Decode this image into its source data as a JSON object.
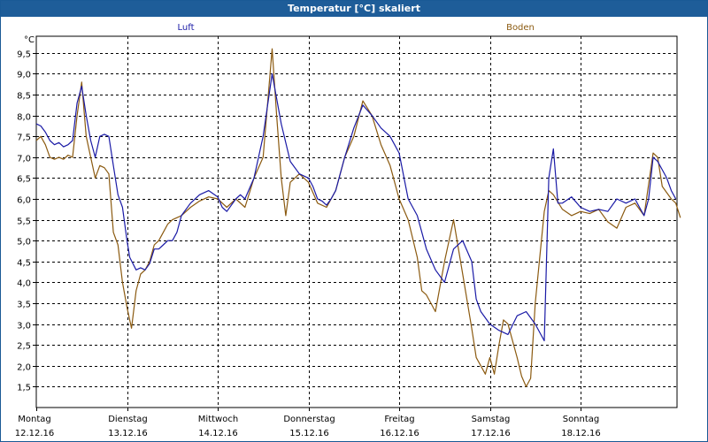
{
  "window": {
    "title": "Temperatur [°C] skaliert"
  },
  "chart_data": {
    "type": "line",
    "title": "Temperatur [°C] skaliert",
    "ylabel": "°C",
    "xlabel": "",
    "ylim": [
      1.0,
      9.9
    ],
    "xlim": [
      0,
      7.1
    ],
    "grid": true,
    "yticks": [
      "1,5",
      "2,0",
      "2,5",
      "3,0",
      "3,5",
      "4,0",
      "4,5",
      "5,0",
      "5,5",
      "6,0",
      "6,5",
      "7,0",
      "7,5",
      "8,0",
      "8,5",
      "9,0",
      "9,5"
    ],
    "ytick_values": [
      1.5,
      2.0,
      2.5,
      3.0,
      3.5,
      4.0,
      4.5,
      5.0,
      5.5,
      6.0,
      6.5,
      7.0,
      7.5,
      8.0,
      8.5,
      9.0,
      9.5
    ],
    "days": [
      {
        "name": "Montag",
        "date": "12.12.16"
      },
      {
        "name": "Dienstag",
        "date": "13.12.16"
      },
      {
        "name": "Mittwoch",
        "date": "14.12.16"
      },
      {
        "name": "Donnerstag",
        "date": "15.12.16"
      },
      {
        "name": "Freitag",
        "date": "16.12.16"
      },
      {
        "name": "Samstag",
        "date": "17.12.16"
      },
      {
        "name": "Sonntag",
        "date": "18.12.16"
      }
    ],
    "legend": [
      {
        "name": "Luft",
        "color": "#1a1aa6"
      },
      {
        "name": "Boden",
        "color": "#8b5a10"
      }
    ],
    "series": [
      {
        "name": "Luft",
        "color": "#1a1aa6",
        "x": [
          0,
          0.05,
          0.1,
          0.15,
          0.2,
          0.25,
          0.3,
          0.35,
          0.4,
          0.45,
          0.5,
          0.55,
          0.6,
          0.65,
          0.7,
          0.75,
          0.8,
          0.85,
          0.9,
          0.95,
          1.0,
          1.03,
          1.1,
          1.15,
          1.2,
          1.25,
          1.3,
          1.35,
          1.4,
          1.45,
          1.5,
          1.55,
          1.6,
          1.7,
          1.8,
          1.9,
          2.0,
          2.05,
          2.1,
          2.2,
          2.25,
          2.3,
          2.4,
          2.5,
          2.6,
          2.7,
          2.8,
          2.9,
          3.0,
          3.05,
          3.1,
          3.15,
          3.2,
          3.25,
          3.3,
          3.4,
          3.5,
          3.6,
          3.7,
          3.8,
          3.9,
          4.0,
          4.1,
          4.2,
          4.3,
          4.4,
          4.5,
          4.6,
          4.7,
          4.8,
          4.85,
          4.9,
          5.0,
          5.1,
          5.2,
          5.3,
          5.4,
          5.5,
          5.55,
          5.6,
          5.65,
          5.7,
          5.75,
          5.8,
          5.9,
          6.0,
          6.1,
          6.2,
          6.3,
          6.4,
          6.5,
          6.6,
          6.65,
          6.7,
          6.75,
          6.8,
          6.85,
          6.9,
          6.95,
          7.0,
          7.05
        ],
        "y": [
          7.8,
          7.75,
          7.6,
          7.4,
          7.3,
          7.35,
          7.25,
          7.3,
          7.4,
          8.3,
          8.7,
          8.0,
          7.4,
          7.0,
          7.5,
          7.55,
          7.5,
          6.8,
          6.1,
          5.8,
          5.0,
          4.6,
          4.3,
          4.35,
          4.3,
          4.45,
          4.8,
          4.8,
          4.9,
          5.0,
          5.0,
          5.2,
          5.6,
          5.9,
          6.1,
          6.2,
          6.05,
          5.8,
          5.7,
          6.0,
          6.1,
          6.0,
          6.5,
          7.5,
          9.0,
          7.8,
          6.9,
          6.6,
          6.5,
          6.3,
          6.0,
          5.95,
          5.85,
          6.0,
          6.2,
          7.0,
          7.7,
          8.25,
          8.0,
          7.7,
          7.5,
          7.1,
          6.0,
          5.6,
          4.8,
          4.3,
          4.0,
          4.8,
          5.0,
          4.5,
          3.6,
          3.3,
          3.0,
          2.85,
          2.75,
          3.2,
          3.3,
          3.0,
          2.8,
          2.6,
          6.5,
          7.2,
          5.9,
          5.9,
          6.05,
          5.8,
          5.7,
          5.75,
          5.7,
          6.0,
          5.9,
          6.0,
          5.8,
          5.6,
          6.0,
          7.0,
          6.9,
          6.7,
          6.5,
          6.2,
          6.0
        ]
      },
      {
        "name": "Boden",
        "color": "#8b5a10",
        "x": [
          0,
          0.05,
          0.1,
          0.15,
          0.2,
          0.25,
          0.3,
          0.35,
          0.4,
          0.45,
          0.5,
          0.55,
          0.6,
          0.65,
          0.7,
          0.75,
          0.8,
          0.85,
          0.9,
          0.95,
          1.0,
          1.05,
          1.1,
          1.15,
          1.2,
          1.25,
          1.3,
          1.35,
          1.4,
          1.45,
          1.5,
          1.6,
          1.7,
          1.8,
          1.9,
          2.0,
          2.1,
          2.2,
          2.3,
          2.4,
          2.5,
          2.6,
          2.65,
          2.7,
          2.75,
          2.8,
          2.9,
          3.0,
          3.1,
          3.2,
          3.3,
          3.4,
          3.5,
          3.6,
          3.7,
          3.8,
          3.9,
          4.0,
          4.1,
          4.2,
          4.25,
          4.3,
          4.35,
          4.4,
          4.5,
          4.6,
          4.7,
          4.8,
          4.85,
          4.9,
          4.95,
          5.0,
          5.05,
          5.1,
          5.15,
          5.2,
          5.3,
          5.35,
          5.4,
          5.45,
          5.5,
          5.6,
          5.65,
          5.7,
          5.8,
          5.9,
          6.0,
          6.1,
          6.2,
          6.3,
          6.4,
          6.5,
          6.6,
          6.7,
          6.8,
          6.85,
          6.9,
          7.0,
          7.05,
          7.1
        ],
        "y": [
          7.4,
          7.5,
          7.3,
          7.0,
          6.95,
          7.0,
          6.95,
          7.05,
          7.0,
          8.0,
          8.8,
          7.5,
          7.0,
          6.5,
          6.8,
          6.75,
          6.6,
          5.2,
          4.9,
          4.0,
          3.4,
          2.9,
          3.8,
          4.2,
          4.3,
          4.5,
          4.9,
          5.0,
          5.2,
          5.4,
          5.5,
          5.6,
          5.8,
          5.95,
          6.05,
          6.0,
          5.8,
          6.0,
          5.8,
          6.5,
          7.0,
          9.6,
          8.0,
          6.5,
          5.6,
          6.4,
          6.6,
          6.4,
          5.9,
          5.8,
          6.2,
          7.0,
          7.5,
          8.35,
          8.0,
          7.3,
          6.8,
          6.0,
          5.5,
          4.6,
          3.8,
          3.7,
          3.5,
          3.3,
          4.5,
          5.5,
          4.2,
          2.9,
          2.2,
          2.0,
          1.8,
          2.2,
          1.8,
          2.5,
          3.1,
          3.0,
          2.2,
          1.75,
          1.5,
          1.7,
          3.5,
          5.7,
          6.2,
          6.1,
          5.75,
          5.6,
          5.7,
          5.65,
          5.75,
          5.45,
          5.3,
          5.8,
          5.9,
          5.6,
          7.1,
          7.0,
          6.3,
          6.0,
          5.9,
          5.55
        ]
      }
    ]
  }
}
